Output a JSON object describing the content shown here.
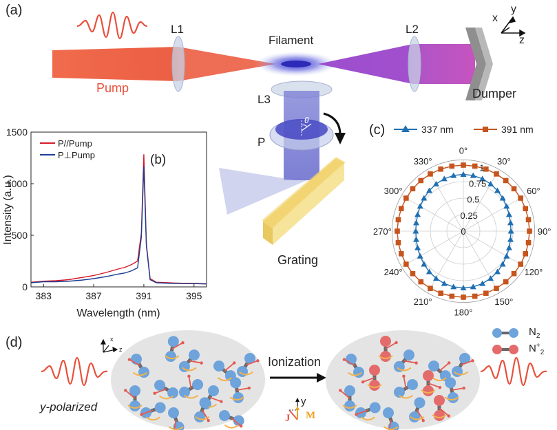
{
  "panel_a": {
    "label": "(a)",
    "lens1": "L1",
    "lens2": "L2",
    "lens3": "L3",
    "filament": "Filament",
    "pump": "Pump",
    "dumper": "Dumper",
    "polarizer": "P",
    "polarizer_angle": "θ",
    "grating": "Grating",
    "axes": {
      "x": "x",
      "y": "y",
      "z": "z"
    }
  },
  "panel_b": {
    "label": "(b)",
    "chart_data": {
      "type": "line",
      "xlabel": "Wavelength (nm)",
      "ylabel": "Intensity (a.u.)",
      "xlim": [
        382,
        396
      ],
      "ylim": [
        0,
        1500
      ],
      "xticks": [
        383,
        387,
        391,
        395
      ],
      "yticks": [
        0,
        500,
        1000,
        1500
      ],
      "legend": "top-left",
      "series": [
        {
          "name": "P//Pump",
          "color": "#d7192a",
          "x": [
            382,
            383,
            384,
            385,
            386,
            387,
            388,
            389,
            389.5,
            390,
            390.5,
            390.8,
            391,
            391.2,
            391.5,
            392,
            393,
            394,
            395,
            396
          ],
          "y": [
            45,
            55,
            60,
            70,
            90,
            110,
            140,
            175,
            190,
            215,
            250,
            520,
            1285,
            420,
            80,
            45,
            40,
            35,
            35,
            30
          ]
        },
        {
          "name": "P⊥Pump",
          "color": "#1b3f94",
          "x": [
            382,
            383,
            384,
            385,
            386,
            387,
            388,
            389,
            389.5,
            390,
            390.5,
            390.8,
            391,
            391.2,
            391.5,
            392,
            393,
            394,
            395,
            396
          ],
          "y": [
            40,
            50,
            50,
            55,
            65,
            80,
            100,
            125,
            135,
            155,
            185,
            480,
            1170,
            400,
            70,
            40,
            35,
            32,
            32,
            28
          ]
        }
      ]
    }
  },
  "panel_c": {
    "label": "(c)",
    "chart_data": {
      "type": "polar",
      "angle_labels": [
        "0°",
        "30°",
        "60°",
        "90°",
        "120°",
        "150°",
        "180°",
        "210°",
        "240°",
        "270°",
        "300°",
        "330°"
      ],
      "radial_ticks": [
        "0.25",
        "0.5",
        "0.75",
        "1"
      ],
      "rlim": [
        0,
        1
      ],
      "legend": "top",
      "series": [
        {
          "name": "337 nm",
          "color": "#1f6fb2",
          "marker": "triangle",
          "r_mean": 0.79,
          "r_amp": 0.07
        },
        {
          "name": "391 nm",
          "color": "#c6541d",
          "marker": "square",
          "r_mean": 1.0,
          "r_amp": 0.0
        }
      ]
    }
  },
  "panel_d": {
    "label": "(d)",
    "y_polarized": "y-polarized",
    "ionization": "Ionization",
    "axis_y": "y",
    "axis_x": "x",
    "axis_z": "z",
    "J": "J",
    "M": "M",
    "legend_n2": "N",
    "legend_n2_sub": "2",
    "legend_n2p": "N",
    "legend_n2p_sub": "2",
    "legend_n2p_sup": "+"
  }
}
